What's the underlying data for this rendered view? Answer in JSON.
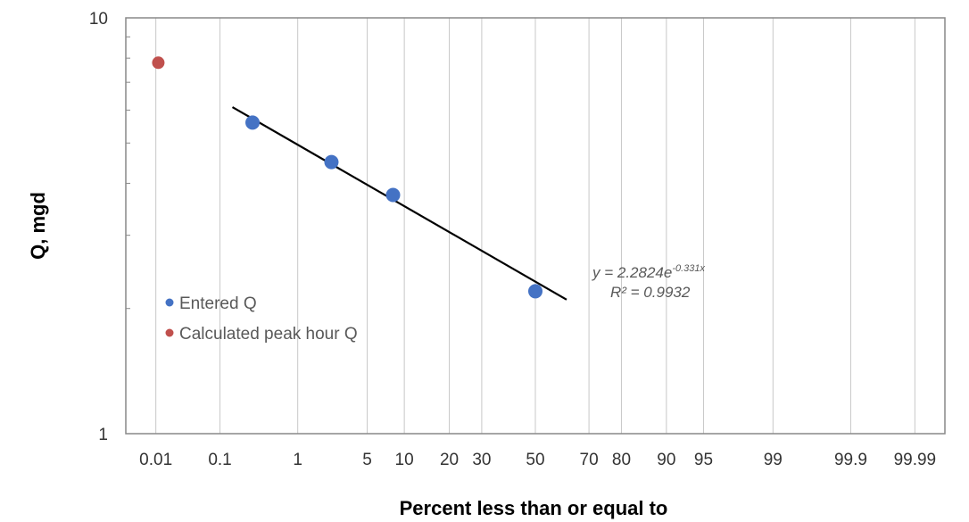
{
  "chart_data": {
    "type": "scatter",
    "title": "",
    "xlabel": "Percent less than or equal to",
    "ylabel": "Q, mgd",
    "x_scale": "normal-probability",
    "y_scale": "log",
    "ylim": [
      1,
      10
    ],
    "y_ticks": [
      {
        "value": 1,
        "label": "1"
      },
      {
        "value": 10,
        "label": "10"
      }
    ],
    "x_ticks": [
      {
        "value": 0.01,
        "label": "0.01"
      },
      {
        "value": 0.1,
        "label": "0.1"
      },
      {
        "value": 1,
        "label": "1"
      },
      {
        "value": 5,
        "label": "5"
      },
      {
        "value": 10,
        "label": "10"
      },
      {
        "value": 20,
        "label": "20"
      },
      {
        "value": 30,
        "label": "30"
      },
      {
        "value": 50,
        "label": "50"
      },
      {
        "value": 70,
        "label": "70"
      },
      {
        "value": 80,
        "label": "80"
      },
      {
        "value": 90,
        "label": "90"
      },
      {
        "value": 95,
        "label": "95"
      },
      {
        "value": 99,
        "label": "99"
      },
      {
        "value": 99.9,
        "label": "99.9"
      },
      {
        "value": 99.99,
        "label": "99.99"
      }
    ],
    "grid": "vertical",
    "legend_position": "left",
    "series": [
      {
        "name": "Entered Q",
        "color": "#4472C4",
        "points": [
          {
            "x": 0.28,
            "y": 5.6
          },
          {
            "x": 2.3,
            "y": 4.5
          },
          {
            "x": 8.2,
            "y": 3.75
          },
          {
            "x": 50,
            "y": 2.2
          }
        ]
      },
      {
        "name": "Calculated peak hour Q",
        "color": "#C0504D",
        "points": [
          {
            "x": 0.011,
            "y": 7.8
          }
        ]
      }
    ],
    "trendline": {
      "color": "#000000",
      "equation_prefix": "y = 2.2824e",
      "equation_exponent": "-0.331x",
      "r_squared": "R² = 0.9932",
      "start": {
        "x": 0.15,
        "y": 6.1
      },
      "end": {
        "x": 62,
        "y": 2.1
      }
    }
  }
}
